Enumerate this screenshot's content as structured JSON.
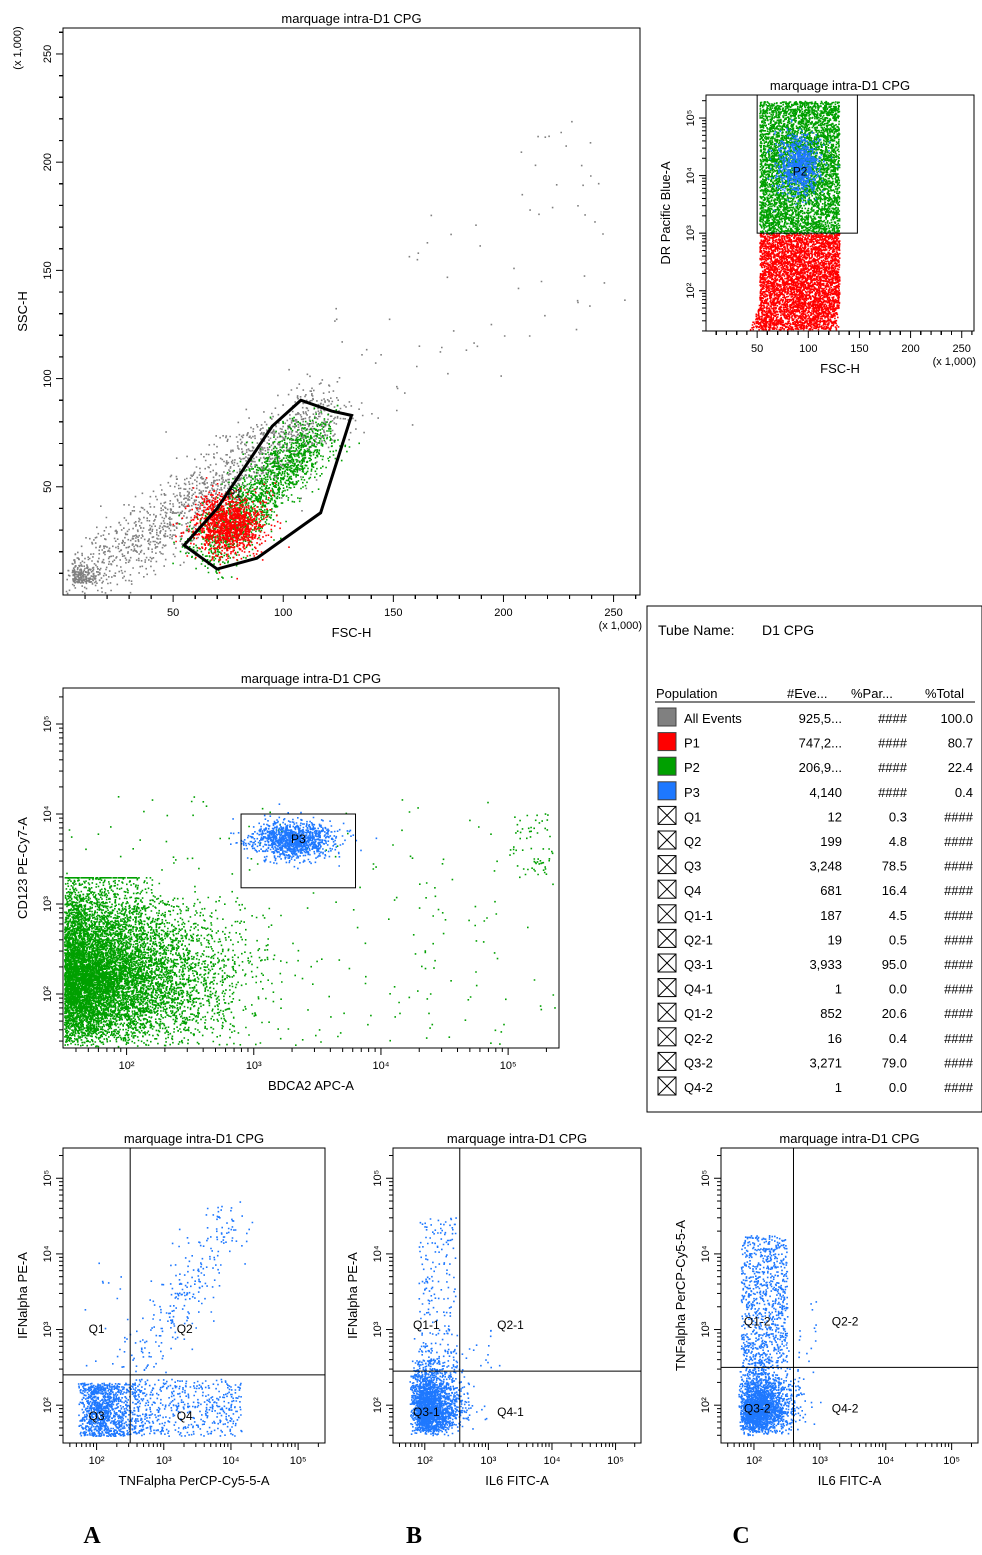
{
  "colors": {
    "all_events": "#808080",
    "P1": "#ff0000",
    "P2": "#00a000",
    "P3": "#1e78ff",
    "gate": "#000000"
  },
  "chart_data": [
    {
      "id": "main",
      "type": "scatter",
      "title": "marquage intra-D1 CPG",
      "xlabel": "FSC-H",
      "ylabel": "SSC-H",
      "x_scale": "linear",
      "y_scale": "linear",
      "xlim": [
        0,
        262
      ],
      "ylim": [
        0,
        262
      ],
      "xticks": [
        50,
        100,
        150,
        200,
        250
      ],
      "xtick_labels": [
        "50",
        "100",
        "150",
        "200",
        "250"
      ],
      "yticks": [
        50,
        100,
        150,
        200,
        250
      ],
      "ytick_labels": [
        "50",
        "100",
        "150",
        "200",
        "250"
      ],
      "x_unit": "(x 1,000)",
      "y_unit": "(x 1,000)",
      "gates": [
        {
          "name": "P1",
          "shape": "polygon",
          "points": [
            [
              55,
              23
            ],
            [
              70,
              12
            ],
            [
              88,
              17
            ],
            [
              117,
              38
            ],
            [
              131,
              83
            ],
            [
              122,
              85
            ],
            [
              108,
              90
            ],
            [
              95,
              78
            ],
            [
              70,
              40
            ]
          ]
        }
      ],
      "populations": [
        {
          "name": "All Events",
          "color": "#808080",
          "approx_center": [
            80,
            35
          ]
        },
        {
          "name": "P1",
          "color": "#ff0000",
          "approx_center": [
            75,
            35
          ]
        },
        {
          "name": "P2",
          "color": "#00a000",
          "approx_center": [
            100,
            55
          ]
        }
      ]
    },
    {
      "id": "dr",
      "type": "scatter",
      "title": "marquage intra-D1 CPG",
      "xlabel": "FSC-H",
      "ylabel": "DR Pacific Blue-A",
      "x_scale": "linear",
      "y_scale": "log",
      "xlim": [
        0,
        262
      ],
      "ylim": [
        1.3,
        5.4
      ],
      "xticks": [
        50,
        100,
        150,
        200,
        250
      ],
      "xtick_labels": [
        "50",
        "100",
        "150",
        "200",
        "250"
      ],
      "x_unit": "(x 1,000)",
      "yticks": [
        2,
        3,
        4,
        5
      ],
      "ytick_labels": [
        "10²",
        "10³",
        "10⁴",
        "10⁵"
      ],
      "gates": [
        {
          "name": "P2",
          "shape": "rectangle",
          "x": [
            50,
            148
          ],
          "y_log": [
            3.0,
            5.4
          ]
        }
      ],
      "populations": [
        {
          "name": "P1",
          "color": "#ff0000",
          "approx_range_x": [
            52,
            130
          ],
          "approx_range_y_log": [
            1.3,
            3.0
          ]
        },
        {
          "name": "P2",
          "color": "#00a000",
          "approx_range_x": [
            52,
            130
          ],
          "approx_range_y_log": [
            3.0,
            5.3
          ]
        },
        {
          "name": "P3",
          "color": "#1e78ff",
          "approx_center": [
            90,
            4.2
          ]
        }
      ]
    },
    {
      "id": "bdca",
      "type": "scatter",
      "title": "marquage intra-D1 CPG",
      "xlabel": "BDCA2 APC-A",
      "ylabel": "CD123 PE-Cy7-A",
      "x_scale": "log",
      "y_scale": "log",
      "xlim": [
        1.5,
        5.4
      ],
      "ylim": [
        1.4,
        5.4
      ],
      "xticks": [
        2,
        3,
        4,
        5
      ],
      "xtick_labels": [
        "10²",
        "10³",
        "10⁴",
        "10⁵"
      ],
      "yticks": [
        2,
        3,
        4,
        5
      ],
      "ytick_labels": [
        "10²",
        "10³",
        "10⁴",
        "10⁵"
      ],
      "gates": [
        {
          "name": "P3",
          "shape": "rectangle",
          "x_log": [
            2.9,
            3.8
          ],
          "y_log": [
            3.18,
            4.0
          ]
        }
      ],
      "populations": [
        {
          "name": "P2",
          "color": "#00a000",
          "approx_center_log": [
            2.1,
            2.1
          ]
        },
        {
          "name": "P3",
          "color": "#1e78ff",
          "approx_center_log": [
            3.3,
            3.72
          ]
        }
      ]
    },
    {
      "id": "A",
      "type": "scatter",
      "title": "marquage intra-D1 CPG",
      "xlabel": "TNFalpha PerCP-Cy5-5-A",
      "ylabel": "IFNalpha PE-A",
      "x_scale": "log",
      "y_scale": "log",
      "xlim": [
        1.5,
        5.4
      ],
      "ylim": [
        1.5,
        5.4
      ],
      "xticks": [
        2,
        3,
        4,
        5
      ],
      "xtick_labels": [
        "10²",
        "10³",
        "10⁴",
        "10⁵"
      ],
      "yticks": [
        2,
        3,
        4,
        5
      ],
      "ytick_labels": [
        "10²",
        "10³",
        "10⁴",
        "10⁵"
      ],
      "quadrant_split_log": [
        2.5,
        2.4
      ],
      "quadrants": [
        "Q1",
        "Q2",
        "Q3",
        "Q4"
      ],
      "populations": [
        {
          "name": "P3",
          "color": "#1e78ff"
        }
      ]
    },
    {
      "id": "B",
      "type": "scatter",
      "title": "marquage intra-D1 CPG",
      "xlabel": "IL6 FITC-A",
      "ylabel": "IFNalpha PE-A",
      "x_scale": "log",
      "y_scale": "log",
      "xlim": [
        1.5,
        5.4
      ],
      "ylim": [
        1.5,
        5.4
      ],
      "xticks": [
        2,
        3,
        4,
        5
      ],
      "xtick_labels": [
        "10²",
        "10³",
        "10⁴",
        "10⁵"
      ],
      "yticks": [
        2,
        3,
        4,
        5
      ],
      "ytick_labels": [
        "10²",
        "10³",
        "10⁴",
        "10⁵"
      ],
      "quadrant_split_log": [
        2.55,
        2.45
      ],
      "quadrants": [
        "Q1-1",
        "Q2-1",
        "Q3-1",
        "Q4-1"
      ],
      "populations": [
        {
          "name": "P3",
          "color": "#1e78ff"
        }
      ]
    },
    {
      "id": "C",
      "type": "scatter",
      "title": "marquage intra-D1 CPG",
      "xlabel": "IL6 FITC-A",
      "ylabel": "TNFalpha PerCP-Cy5-5-A",
      "x_scale": "log",
      "y_scale": "log",
      "xlim": [
        1.5,
        5.4
      ],
      "ylim": [
        1.5,
        5.4
      ],
      "xticks": [
        2,
        3,
        4,
        5
      ],
      "xtick_labels": [
        "10²",
        "10³",
        "10⁴",
        "10⁵"
      ],
      "yticks": [
        2,
        3,
        4,
        5
      ],
      "ytick_labels": [
        "10²",
        "10³",
        "10⁴",
        "10⁵"
      ],
      "quadrant_split_log": [
        2.6,
        2.5
      ],
      "quadrants": [
        "Q1-2",
        "Q2-2",
        "Q3-2",
        "Q4-2"
      ],
      "populations": [
        {
          "name": "P3",
          "color": "#1e78ff"
        }
      ]
    }
  ],
  "table": {
    "tube_label": "Tube Name:",
    "tube_name": "D1 CPG",
    "columns": [
      "Population",
      "#Eve...",
      "%Par...",
      "%Total"
    ],
    "rows": [
      {
        "name": "All Events",
        "events": "925,5...",
        "par": "####",
        "total": "100.0",
        "swatch": "#808080"
      },
      {
        "name": "P1",
        "events": "747,2...",
        "par": "####",
        "total": "80.7",
        "swatch": "#ff0000"
      },
      {
        "name": "P2",
        "events": "206,9...",
        "par": "####",
        "total": "22.4",
        "swatch": "#00a000"
      },
      {
        "name": "P3",
        "events": "4,140",
        "par": "####",
        "total": "0.4",
        "swatch": "#1e78ff"
      },
      {
        "name": "Q1",
        "events": "12",
        "par": "0.3",
        "total": "####",
        "swatch": "x"
      },
      {
        "name": "Q2",
        "events": "199",
        "par": "4.8",
        "total": "####",
        "swatch": "x"
      },
      {
        "name": "Q3",
        "events": "3,248",
        "par": "78.5",
        "total": "####",
        "swatch": "x"
      },
      {
        "name": "Q4",
        "events": "681",
        "par": "16.4",
        "total": "####",
        "swatch": "x"
      },
      {
        "name": "Q1-1",
        "events": "187",
        "par": "4.5",
        "total": "####",
        "swatch": "x"
      },
      {
        "name": "Q2-1",
        "events": "19",
        "par": "0.5",
        "total": "####",
        "swatch": "x"
      },
      {
        "name": "Q3-1",
        "events": "3,933",
        "par": "95.0",
        "total": "####",
        "swatch": "x"
      },
      {
        "name": "Q4-1",
        "events": "1",
        "par": "0.0",
        "total": "####",
        "swatch": "x"
      },
      {
        "name": "Q1-2",
        "events": "852",
        "par": "20.6",
        "total": "####",
        "swatch": "x"
      },
      {
        "name": "Q2-2",
        "events": "16",
        "par": "0.4",
        "total": "####",
        "swatch": "x"
      },
      {
        "name": "Q3-2",
        "events": "3,271",
        "par": "79.0",
        "total": "####",
        "swatch": "x"
      },
      {
        "name": "Q4-2",
        "events": "1",
        "par": "0.0",
        "total": "####",
        "swatch": "x"
      }
    ]
  },
  "panel_letters": [
    "A",
    "B",
    "C"
  ]
}
